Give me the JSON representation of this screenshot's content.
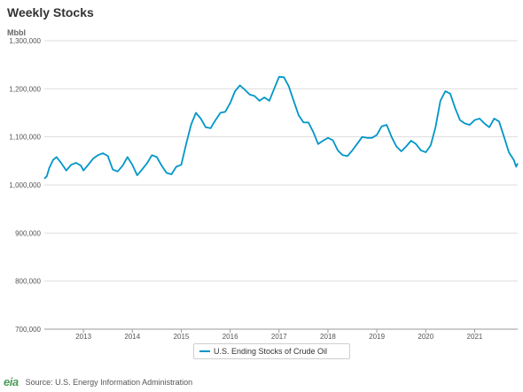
{
  "header": {
    "title": "Weekly Stocks",
    "unit": "Mbbl"
  },
  "footer": {
    "logo": "eia",
    "source": "Source: U.S. Energy Information Administration"
  },
  "chart_data": {
    "type": "line",
    "title": "Weekly Stocks",
    "ylabel": "Mbbl",
    "xlabel": "",
    "ylim": [
      700000,
      1300000
    ],
    "xlim": [
      2012.2,
      2021.88
    ],
    "yticks": [
      "700,000",
      "800,000",
      "900,000",
      "1,000,000",
      "1,100,000",
      "1,200,000",
      "1,300,000"
    ],
    "ytick_values": [
      700000,
      800000,
      900000,
      1000000,
      1100000,
      1200000,
      1300000
    ],
    "xticks": [
      "2013",
      "2014",
      "2015",
      "2016",
      "2017",
      "2018",
      "2019",
      "2020",
      "2021"
    ],
    "xtick_values": [
      2013,
      2014,
      2015,
      2016,
      2017,
      2018,
      2019,
      2020,
      2021
    ],
    "grid": true,
    "legend_position": "bottom-center",
    "color": "#0096c8",
    "series": [
      {
        "name": "U.S. Ending Stocks of Crude Oil",
        "x": [
          2012.2,
          2012.25,
          2012.3,
          2012.38,
          2012.45,
          2012.55,
          2012.65,
          2012.75,
          2012.85,
          2012.95,
          2013.0,
          2013.1,
          2013.2,
          2013.3,
          2013.4,
          2013.5,
          2013.6,
          2013.7,
          2013.8,
          2013.9,
          2014.0,
          2014.1,
          2014.2,
          2014.3,
          2014.4,
          2014.5,
          2014.6,
          2014.7,
          2014.8,
          2014.9,
          2015.0,
          2015.1,
          2015.2,
          2015.3,
          2015.4,
          2015.5,
          2015.6,
          2015.7,
          2015.8,
          2015.9,
          2016.0,
          2016.1,
          2016.2,
          2016.3,
          2016.4,
          2016.5,
          2016.6,
          2016.7,
          2016.8,
          2016.9,
          2017.0,
          2017.1,
          2017.2,
          2017.3,
          2017.4,
          2017.5,
          2017.6,
          2017.7,
          2017.8,
          2017.9,
          2018.0,
          2018.1,
          2018.2,
          2018.3,
          2018.4,
          2018.5,
          2018.6,
          2018.7,
          2018.8,
          2018.9,
          2019.0,
          2019.1,
          2019.2,
          2019.3,
          2019.4,
          2019.5,
          2019.6,
          2019.7,
          2019.8,
          2019.9,
          2020.0,
          2020.1,
          2020.2,
          2020.3,
          2020.4,
          2020.5,
          2020.6,
          2020.7,
          2020.8,
          2020.9,
          2021.0,
          2021.1,
          2021.2,
          2021.3,
          2021.4,
          2021.5,
          2021.6,
          2021.7,
          2021.75,
          2021.8,
          2021.85,
          2021.88
        ],
        "values": [
          1013000,
          1018000,
          1035000,
          1052000,
          1058000,
          1045000,
          1030000,
          1042000,
          1046000,
          1040000,
          1030000,
          1042000,
          1055000,
          1062000,
          1066000,
          1060000,
          1032000,
          1028000,
          1040000,
          1058000,
          1042000,
          1020000,
          1032000,
          1045000,
          1062000,
          1058000,
          1040000,
          1025000,
          1022000,
          1038000,
          1042000,
          1085000,
          1125000,
          1150000,
          1138000,
          1120000,
          1118000,
          1135000,
          1150000,
          1152000,
          1170000,
          1195000,
          1207000,
          1198000,
          1188000,
          1185000,
          1175000,
          1182000,
          1175000,
          1200000,
          1225000,
          1224000,
          1205000,
          1175000,
          1145000,
          1130000,
          1130000,
          1110000,
          1085000,
          1092000,
          1098000,
          1093000,
          1072000,
          1062000,
          1060000,
          1072000,
          1086000,
          1100000,
          1098000,
          1098000,
          1104000,
          1122000,
          1125000,
          1100000,
          1080000,
          1070000,
          1080000,
          1092000,
          1085000,
          1072000,
          1068000,
          1082000,
          1120000,
          1175000,
          1195000,
          1190000,
          1160000,
          1135000,
          1128000,
          1125000,
          1135000,
          1138000,
          1128000,
          1120000,
          1138000,
          1132000,
          1100000,
          1068000,
          1060000,
          1052000,
          1038000,
          1045000
        ]
      }
    ]
  }
}
